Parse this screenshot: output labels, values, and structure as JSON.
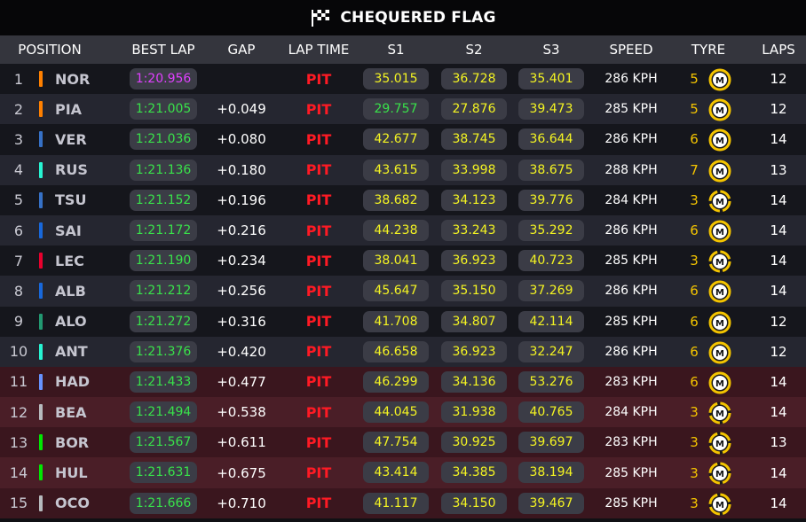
{
  "title": "CHEQUERED FLAG",
  "headers": {
    "position": "POSITION",
    "best_lap": "BEST LAP",
    "gap": "GAP",
    "lap_time": "LAP TIME",
    "s1": "S1",
    "s2": "S2",
    "s3": "S3",
    "speed": "SPEED",
    "tyre": "TYRE",
    "laps": "LAPS"
  },
  "colors": {
    "pit": "#ff1a24",
    "personal_best": "#39e24a",
    "overall_best": "#e040ff",
    "sector": "#f4f422",
    "tyre_medium": "#f4c400"
  },
  "rows": [
    {
      "pos": "1",
      "driver": "NOR",
      "team_color": "#ff8000",
      "best_lap": "1:20.956",
      "best_overall": true,
      "gap": "",
      "lap_time": "PIT",
      "s1": "35.015",
      "s1_best": false,
      "s2": "36.728",
      "s3": "35.401",
      "speed": "286 KPH",
      "tyre_age": "5",
      "tyre_compound": "M",
      "tyre_icon": "medium-tyre-icon",
      "laps": "12",
      "eliminated": false
    },
    {
      "pos": "2",
      "driver": "PIA",
      "team_color": "#ff8000",
      "best_lap": "1:21.005",
      "best_overall": false,
      "gap": "+0.049",
      "lap_time": "PIT",
      "s1": "29.757",
      "s1_best": true,
      "s2": "27.876",
      "s3": "39.473",
      "speed": "285 KPH",
      "tyre_age": "5",
      "tyre_compound": "M",
      "tyre_icon": "medium-tyre-icon",
      "laps": "12",
      "eliminated": false
    },
    {
      "pos": "3",
      "driver": "VER",
      "team_color": "#3671c6",
      "best_lap": "1:21.036",
      "best_overall": false,
      "gap": "+0.080",
      "lap_time": "PIT",
      "s1": "42.677",
      "s1_best": false,
      "s2": "38.745",
      "s3": "36.644",
      "speed": "286 KPH",
      "tyre_age": "6",
      "tyre_compound": "M",
      "tyre_icon": "medium-tyre-icon",
      "laps": "14",
      "eliminated": false
    },
    {
      "pos": "4",
      "driver": "RUS",
      "team_color": "#27f4d2",
      "best_lap": "1:21.136",
      "best_overall": false,
      "gap": "+0.180",
      "lap_time": "PIT",
      "s1": "43.615",
      "s1_best": false,
      "s2": "33.998",
      "s3": "38.675",
      "speed": "288 KPH",
      "tyre_age": "7",
      "tyre_compound": "M",
      "tyre_icon": "medium-tyre-icon",
      "laps": "13",
      "eliminated": false
    },
    {
      "pos": "5",
      "driver": "TSU",
      "team_color": "#3671c6",
      "best_lap": "1:21.152",
      "best_overall": false,
      "gap": "+0.196",
      "lap_time": "PIT",
      "s1": "38.682",
      "s1_best": false,
      "s2": "34.123",
      "s3": "39.776",
      "speed": "284 KPH",
      "tyre_age": "3",
      "tyre_compound": "M",
      "tyre_icon": "medium-tyre-new-icon",
      "laps": "14",
      "eliminated": false
    },
    {
      "pos": "6",
      "driver": "SAI",
      "team_color": "#1868db",
      "best_lap": "1:21.172",
      "best_overall": false,
      "gap": "+0.216",
      "lap_time": "PIT",
      "s1": "44.238",
      "s1_best": false,
      "s2": "33.243",
      "s3": "35.292",
      "speed": "286 KPH",
      "tyre_age": "6",
      "tyre_compound": "M",
      "tyre_icon": "medium-tyre-icon",
      "laps": "14",
      "eliminated": false
    },
    {
      "pos": "7",
      "driver": "LEC",
      "team_color": "#e8002d",
      "best_lap": "1:21.190",
      "best_overall": false,
      "gap": "+0.234",
      "lap_time": "PIT",
      "s1": "38.041",
      "s1_best": false,
      "s2": "36.923",
      "s3": "40.723",
      "speed": "285 KPH",
      "tyre_age": "3",
      "tyre_compound": "M",
      "tyre_icon": "medium-tyre-new-icon",
      "laps": "14",
      "eliminated": false
    },
    {
      "pos": "8",
      "driver": "ALB",
      "team_color": "#1868db",
      "best_lap": "1:21.212",
      "best_overall": false,
      "gap": "+0.256",
      "lap_time": "PIT",
      "s1": "45.647",
      "s1_best": false,
      "s2": "35.150",
      "s3": "37.269",
      "speed": "286 KPH",
      "tyre_age": "6",
      "tyre_compound": "M",
      "tyre_icon": "medium-tyre-icon",
      "laps": "14",
      "eliminated": false
    },
    {
      "pos": "9",
      "driver": "ALO",
      "team_color": "#229971",
      "best_lap": "1:21.272",
      "best_overall": false,
      "gap": "+0.316",
      "lap_time": "PIT",
      "s1": "41.708",
      "s1_best": false,
      "s2": "34.807",
      "s3": "42.114",
      "speed": "285 KPH",
      "tyre_age": "6",
      "tyre_compound": "M",
      "tyre_icon": "medium-tyre-icon",
      "laps": "12",
      "eliminated": false
    },
    {
      "pos": "10",
      "driver": "ANT",
      "team_color": "#27f4d2",
      "best_lap": "1:21.376",
      "best_overall": false,
      "gap": "+0.420",
      "lap_time": "PIT",
      "s1": "46.658",
      "s1_best": false,
      "s2": "36.923",
      "s3": "32.247",
      "speed": "286 KPH",
      "tyre_age": "6",
      "tyre_compound": "M",
      "tyre_icon": "medium-tyre-icon",
      "laps": "12",
      "eliminated": false
    },
    {
      "pos": "11",
      "driver": "HAD",
      "team_color": "#6692ff",
      "best_lap": "1:21.433",
      "best_overall": false,
      "gap": "+0.477",
      "lap_time": "PIT",
      "s1": "46.299",
      "s1_best": false,
      "s2": "34.136",
      "s3": "53.276",
      "speed": "283 KPH",
      "tyre_age": "6",
      "tyre_compound": "M",
      "tyre_icon": "medium-tyre-icon",
      "laps": "14",
      "eliminated": true
    },
    {
      "pos": "12",
      "driver": "BEA",
      "team_color": "#b6babd",
      "best_lap": "1:21.494",
      "best_overall": false,
      "gap": "+0.538",
      "lap_time": "PIT",
      "s1": "44.045",
      "s1_best": false,
      "s2": "31.938",
      "s3": "40.765",
      "speed": "284 KPH",
      "tyre_age": "3",
      "tyre_compound": "M",
      "tyre_icon": "medium-tyre-new-icon",
      "laps": "14",
      "eliminated": true
    },
    {
      "pos": "13",
      "driver": "BOR",
      "team_color": "#00e701",
      "best_lap": "1:21.567",
      "best_overall": false,
      "gap": "+0.611",
      "lap_time": "PIT",
      "s1": "47.754",
      "s1_best": false,
      "s2": "30.925",
      "s3": "39.697",
      "speed": "283 KPH",
      "tyre_age": "3",
      "tyre_compound": "M",
      "tyre_icon": "medium-tyre-new-icon",
      "laps": "13",
      "eliminated": true
    },
    {
      "pos": "14",
      "driver": "HUL",
      "team_color": "#00e701",
      "best_lap": "1:21.631",
      "best_overall": false,
      "gap": "+0.675",
      "lap_time": "PIT",
      "s1": "43.414",
      "s1_best": false,
      "s2": "34.385",
      "s3": "38.194",
      "speed": "285 KPH",
      "tyre_age": "3",
      "tyre_compound": "M",
      "tyre_icon": "medium-tyre-new-icon",
      "laps": "14",
      "eliminated": true
    },
    {
      "pos": "15",
      "driver": "OCO",
      "team_color": "#b6babd",
      "best_lap": "1:21.666",
      "best_overall": false,
      "gap": "+0.710",
      "lap_time": "PIT",
      "s1": "41.117",
      "s1_best": false,
      "s2": "34.150",
      "s3": "39.467",
      "speed": "285 KPH",
      "tyre_age": "3",
      "tyre_compound": "M",
      "tyre_icon": "medium-tyre-new-icon",
      "laps": "14",
      "eliminated": true
    }
  ]
}
